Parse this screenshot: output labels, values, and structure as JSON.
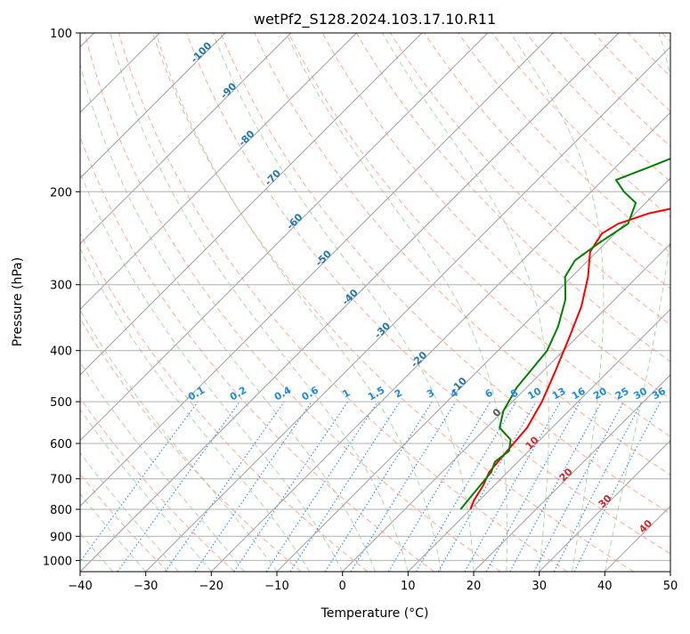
{
  "chart_data": {
    "type": "line",
    "subtype": "skew-t log-p diagram",
    "title": "wetPf2_S128.2024.103.17.10.R11",
    "xlabel": "Temperature (°C)",
    "ylabel": "Pressure (hPa)",
    "xlim": [
      -40,
      50
    ],
    "ylim": [
      1050,
      100
    ],
    "y_scale": "log",
    "grid": true,
    "x_ticks": [
      -40,
      -30,
      -20,
      -10,
      0,
      10,
      20,
      30,
      40,
      50
    ],
    "x_tick_labels": [
      "−40",
      "−30",
      "−20",
      "−10",
      "0",
      "10",
      "20",
      "30",
      "40",
      "50"
    ],
    "y_ticks": [
      1000,
      900,
      800,
      700,
      600,
      500,
      400,
      300,
      200,
      100
    ],
    "y_tick_labels": [
      "1000",
      "900",
      "800",
      "700",
      "600",
      "500",
      "400",
      "300",
      "200",
      "100"
    ],
    "colors": {
      "temperature": "#ff0000",
      "dewpoint": "#008000",
      "dry_adiabat": "#ff8c69",
      "moist_adiabat": "#90c890",
      "mixing_ratio": "#1e88e5",
      "isotherm": "#9e9e9e",
      "label_blue": "#1f77b4",
      "label_red": "#d62728"
    },
    "series": [
      {
        "key": "temperature",
        "x": [
          10.0,
          9.2,
          8.3,
          7.2,
          6.7,
          6.2,
          4.5,
          2.0,
          -1.0,
          -4.0,
          -7.5,
          -11.0,
          -12.0,
          -11.0,
          -8.0,
          4.0,
          14.0,
          22.0,
          27.0,
          30.0
        ],
        "y": [
          800,
          770,
          720,
          680,
          620,
          560,
          500,
          440,
          380,
          330,
          290,
          260,
          240,
          230,
          220,
          200,
          175,
          150,
          130,
          100
        ]
      },
      {
        "key": "dewpoint",
        "x": [
          8.5,
          8.1,
          7.5,
          6.5,
          7.0,
          5.5,
          2.0,
          0.0,
          -1.5,
          -2.5,
          -4.5,
          -7.5,
          -11.0,
          -12.0,
          -11.0,
          -9.5,
          -11.5,
          -15.0,
          -18.0,
          -15.0,
          -12.0,
          -8.0,
          -3.0,
          2.0,
          7.0
        ],
        "y": [
          800,
          750,
          680,
          650,
          620,
          590,
          560,
          520,
          470,
          400,
          360,
          320,
          290,
          270,
          250,
          230,
          210,
          200,
          190,
          180,
          170,
          155,
          140,
          120,
          100
        ]
      }
    ],
    "isotherm_labels": [
      "-100",
      "-90",
      "-80",
      "-70",
      "-60",
      "-50",
      "-40",
      "-30",
      "-20",
      "-10"
    ],
    "mixing_ratio_labels": [
      "0.1",
      "0.2",
      "0.4",
      "0.6",
      "1",
      "1.5",
      "2",
      "3",
      "4",
      "6",
      "8",
      "10",
      "13",
      "16",
      "20",
      "25",
      "30",
      "36"
    ],
    "isotherm_labels_warm": [
      "0",
      "10",
      "20",
      "30",
      "40"
    ]
  }
}
